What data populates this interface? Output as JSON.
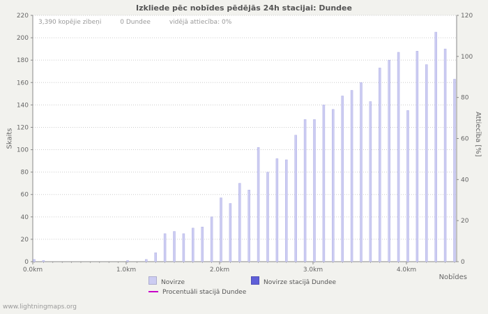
{
  "chart_data": {
    "type": "bar",
    "title": "Izkliede pēc nobīdes pēdējās 24h stacijai: Dundee",
    "stats": {
      "total_strikes": "3,390 kopējie zibeņi",
      "station_strikes": "0 Dundee",
      "avg_ratio": "vidējā attiecība: 0%"
    },
    "xlabel": "Nobīdes",
    "ylabel_left": "Skaits",
    "ylabel_right": "Attiecība [%]",
    "x_unit": "km",
    "x_km": [
      0.0,
      0.1,
      0.2,
      0.3,
      0.4,
      0.5,
      0.6,
      0.7,
      0.8,
      0.9,
      1.0,
      1.1,
      1.2,
      1.3,
      1.4,
      1.5,
      1.6,
      1.7,
      1.8,
      1.9,
      2.0,
      2.1,
      2.2,
      2.3,
      2.4,
      2.5,
      2.6,
      2.7,
      2.8,
      2.9,
      3.0,
      3.1,
      3.2,
      3.3,
      3.4,
      3.5,
      3.6,
      3.7,
      3.8,
      3.9,
      4.0,
      4.1,
      4.2,
      4.3,
      4.4,
      4.5
    ],
    "series": [
      {
        "name": "Novirze",
        "values": [
          2,
          1,
          0,
          0,
          0,
          0,
          0,
          0,
          0,
          0,
          1,
          0,
          2,
          8,
          25,
          27,
          25,
          30,
          31,
          40,
          57,
          52,
          70,
          64,
          102,
          80,
          92,
          91,
          113,
          127,
          127,
          140,
          136,
          148,
          153,
          160,
          143,
          173,
          180,
          187,
          135,
          188,
          176,
          205,
          190,
          163
        ]
      }
    ],
    "percent_series": {
      "name": "Procentuāli stacijā Dundee",
      "constant_value": 0
    },
    "ylim_left": [
      0,
      220
    ],
    "ylim_right": [
      0,
      120
    ],
    "ytick_step": 20,
    "xtick_labels": [
      "0.0km",
      "1.0km",
      "2.0km",
      "3.0km",
      "4.0km"
    ],
    "xtick_km": [
      0,
      1,
      2,
      3,
      4
    ],
    "grid": "horizontal-dotted",
    "legend_position": "bottom",
    "colors": {
      "bar_fill": "#ccccf2",
      "bar_edge": "#b0b0e4",
      "station_bar": "#5f5fd8",
      "percent_line": "#c800c8",
      "axis": "#888888",
      "grid": "#cccccc",
      "plot_background": "#ffffff",
      "page_background": "#f2f2ee"
    },
    "legend": [
      {
        "label": "Novirze",
        "swatch": "#ccccf2",
        "kind": "box"
      },
      {
        "label": "Novirze stacijā Dundee",
        "swatch": "#5f5fd8",
        "kind": "box"
      },
      {
        "label": "Procentuāli stacijā Dundee",
        "swatch": "#c800c8",
        "kind": "line"
      }
    ]
  },
  "footer": {
    "url": "www.lightningmaps.org"
  }
}
